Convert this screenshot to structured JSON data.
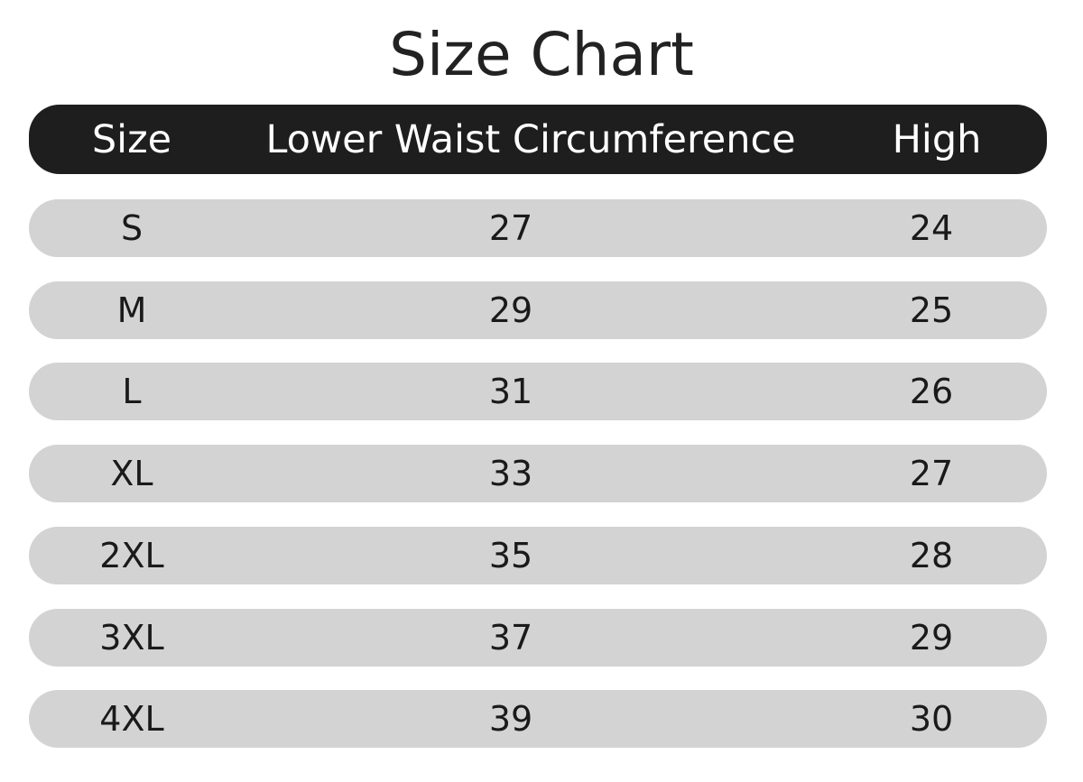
{
  "title": "Size Chart",
  "table": {
    "header": [
      "Size",
      "Lower Waist Circumference",
      "High"
    ],
    "rows": [
      [
        "S",
        27,
        24
      ],
      [
        "M",
        29,
        25
      ],
      [
        "L",
        31,
        26
      ],
      [
        "XL",
        33,
        27
      ],
      [
        "2XL",
        35,
        28
      ],
      [
        "3XL",
        37,
        29
      ],
      [
        "4XL",
        39,
        30
      ]
    ]
  }
}
